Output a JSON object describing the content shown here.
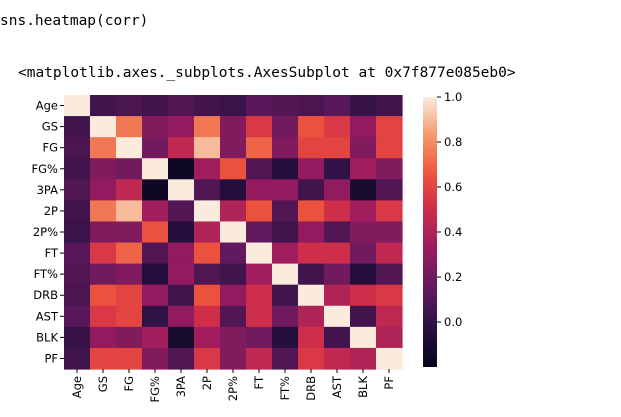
{
  "notebook": {
    "input_code": "sns.heatmap(corr)",
    "output_repr": "<matplotlib.axes._subplots.AxesSubplot at 0x7f877e085eb0>"
  },
  "chart_data": {
    "type": "heatmap",
    "variables": [
      "Age",
      "GS",
      "FG",
      "FG%",
      "3PA",
      "2P",
      "2P%",
      "FT",
      "FT%",
      "DRB",
      "AST",
      "BLK",
      "PF"
    ],
    "tick_labels": [
      "Age",
      "GS",
      "FG",
      "FG%",
      "3PA",
      "2P",
      "2P%",
      "FT",
      "FT%",
      "DRB",
      "AST",
      "BLK",
      "PF"
    ],
    "colorbar_ticks": [
      {
        "value": 1.0,
        "label": "1.0"
      },
      {
        "value": 0.8,
        "label": "0.8"
      },
      {
        "value": 0.6,
        "label": "0.6"
      },
      {
        "value": 0.4,
        "label": "0.4"
      },
      {
        "value": 0.2,
        "label": "0.2"
      },
      {
        "value": 0.0,
        "label": "0.0"
      }
    ],
    "vmin": -0.2,
    "vmax": 1.0,
    "colormap": "rocket",
    "matrix": [
      [
        1.0,
        0.05,
        0.08,
        0.05,
        0.1,
        0.05,
        0.03,
        0.12,
        0.1,
        0.08,
        0.12,
        0.02,
        0.05
      ],
      [
        0.05,
        1.0,
        0.75,
        0.25,
        0.3,
        0.75,
        0.25,
        0.55,
        0.2,
        0.65,
        0.55,
        0.3,
        0.6
      ],
      [
        0.08,
        0.75,
        1.0,
        0.2,
        0.45,
        0.9,
        0.25,
        0.7,
        0.25,
        0.6,
        0.6,
        0.25,
        0.6
      ],
      [
        0.05,
        0.25,
        0.2,
        1.0,
        -0.15,
        0.35,
        0.65,
        0.1,
        -0.05,
        0.3,
        0.0,
        0.35,
        0.25
      ],
      [
        0.1,
        0.3,
        0.45,
        -0.15,
        1.0,
        0.1,
        -0.05,
        0.3,
        0.3,
        0.05,
        0.3,
        -0.1,
        0.1
      ],
      [
        0.05,
        0.75,
        0.9,
        0.35,
        0.1,
        1.0,
        0.4,
        0.65,
        0.1,
        0.65,
        0.5,
        0.35,
        0.55
      ],
      [
        0.03,
        0.25,
        0.25,
        0.65,
        -0.05,
        0.4,
        1.0,
        0.15,
        0.05,
        0.3,
        0.1,
        0.25,
        0.25
      ],
      [
        0.12,
        0.55,
        0.7,
        0.1,
        0.3,
        0.65,
        0.15,
        1.0,
        0.35,
        0.5,
        0.5,
        0.2,
        0.45
      ],
      [
        0.1,
        0.2,
        0.25,
        -0.05,
        0.3,
        0.1,
        0.05,
        0.35,
        1.0,
        0.05,
        0.2,
        -0.05,
        0.1
      ],
      [
        0.08,
        0.65,
        0.6,
        0.3,
        0.05,
        0.65,
        0.3,
        0.5,
        0.05,
        1.0,
        0.4,
        0.5,
        0.55
      ],
      [
        0.12,
        0.55,
        0.6,
        0.0,
        0.3,
        0.5,
        0.1,
        0.5,
        0.2,
        0.4,
        1.0,
        0.05,
        0.45
      ],
      [
        0.02,
        0.3,
        0.25,
        0.35,
        -0.1,
        0.35,
        0.25,
        0.2,
        -0.05,
        0.5,
        0.05,
        1.0,
        0.4
      ],
      [
        0.05,
        0.6,
        0.6,
        0.25,
        0.1,
        0.55,
        0.25,
        0.45,
        0.1,
        0.55,
        0.45,
        0.4,
        1.0
      ]
    ],
    "title": "",
    "xlabel": "",
    "ylabel": ""
  }
}
